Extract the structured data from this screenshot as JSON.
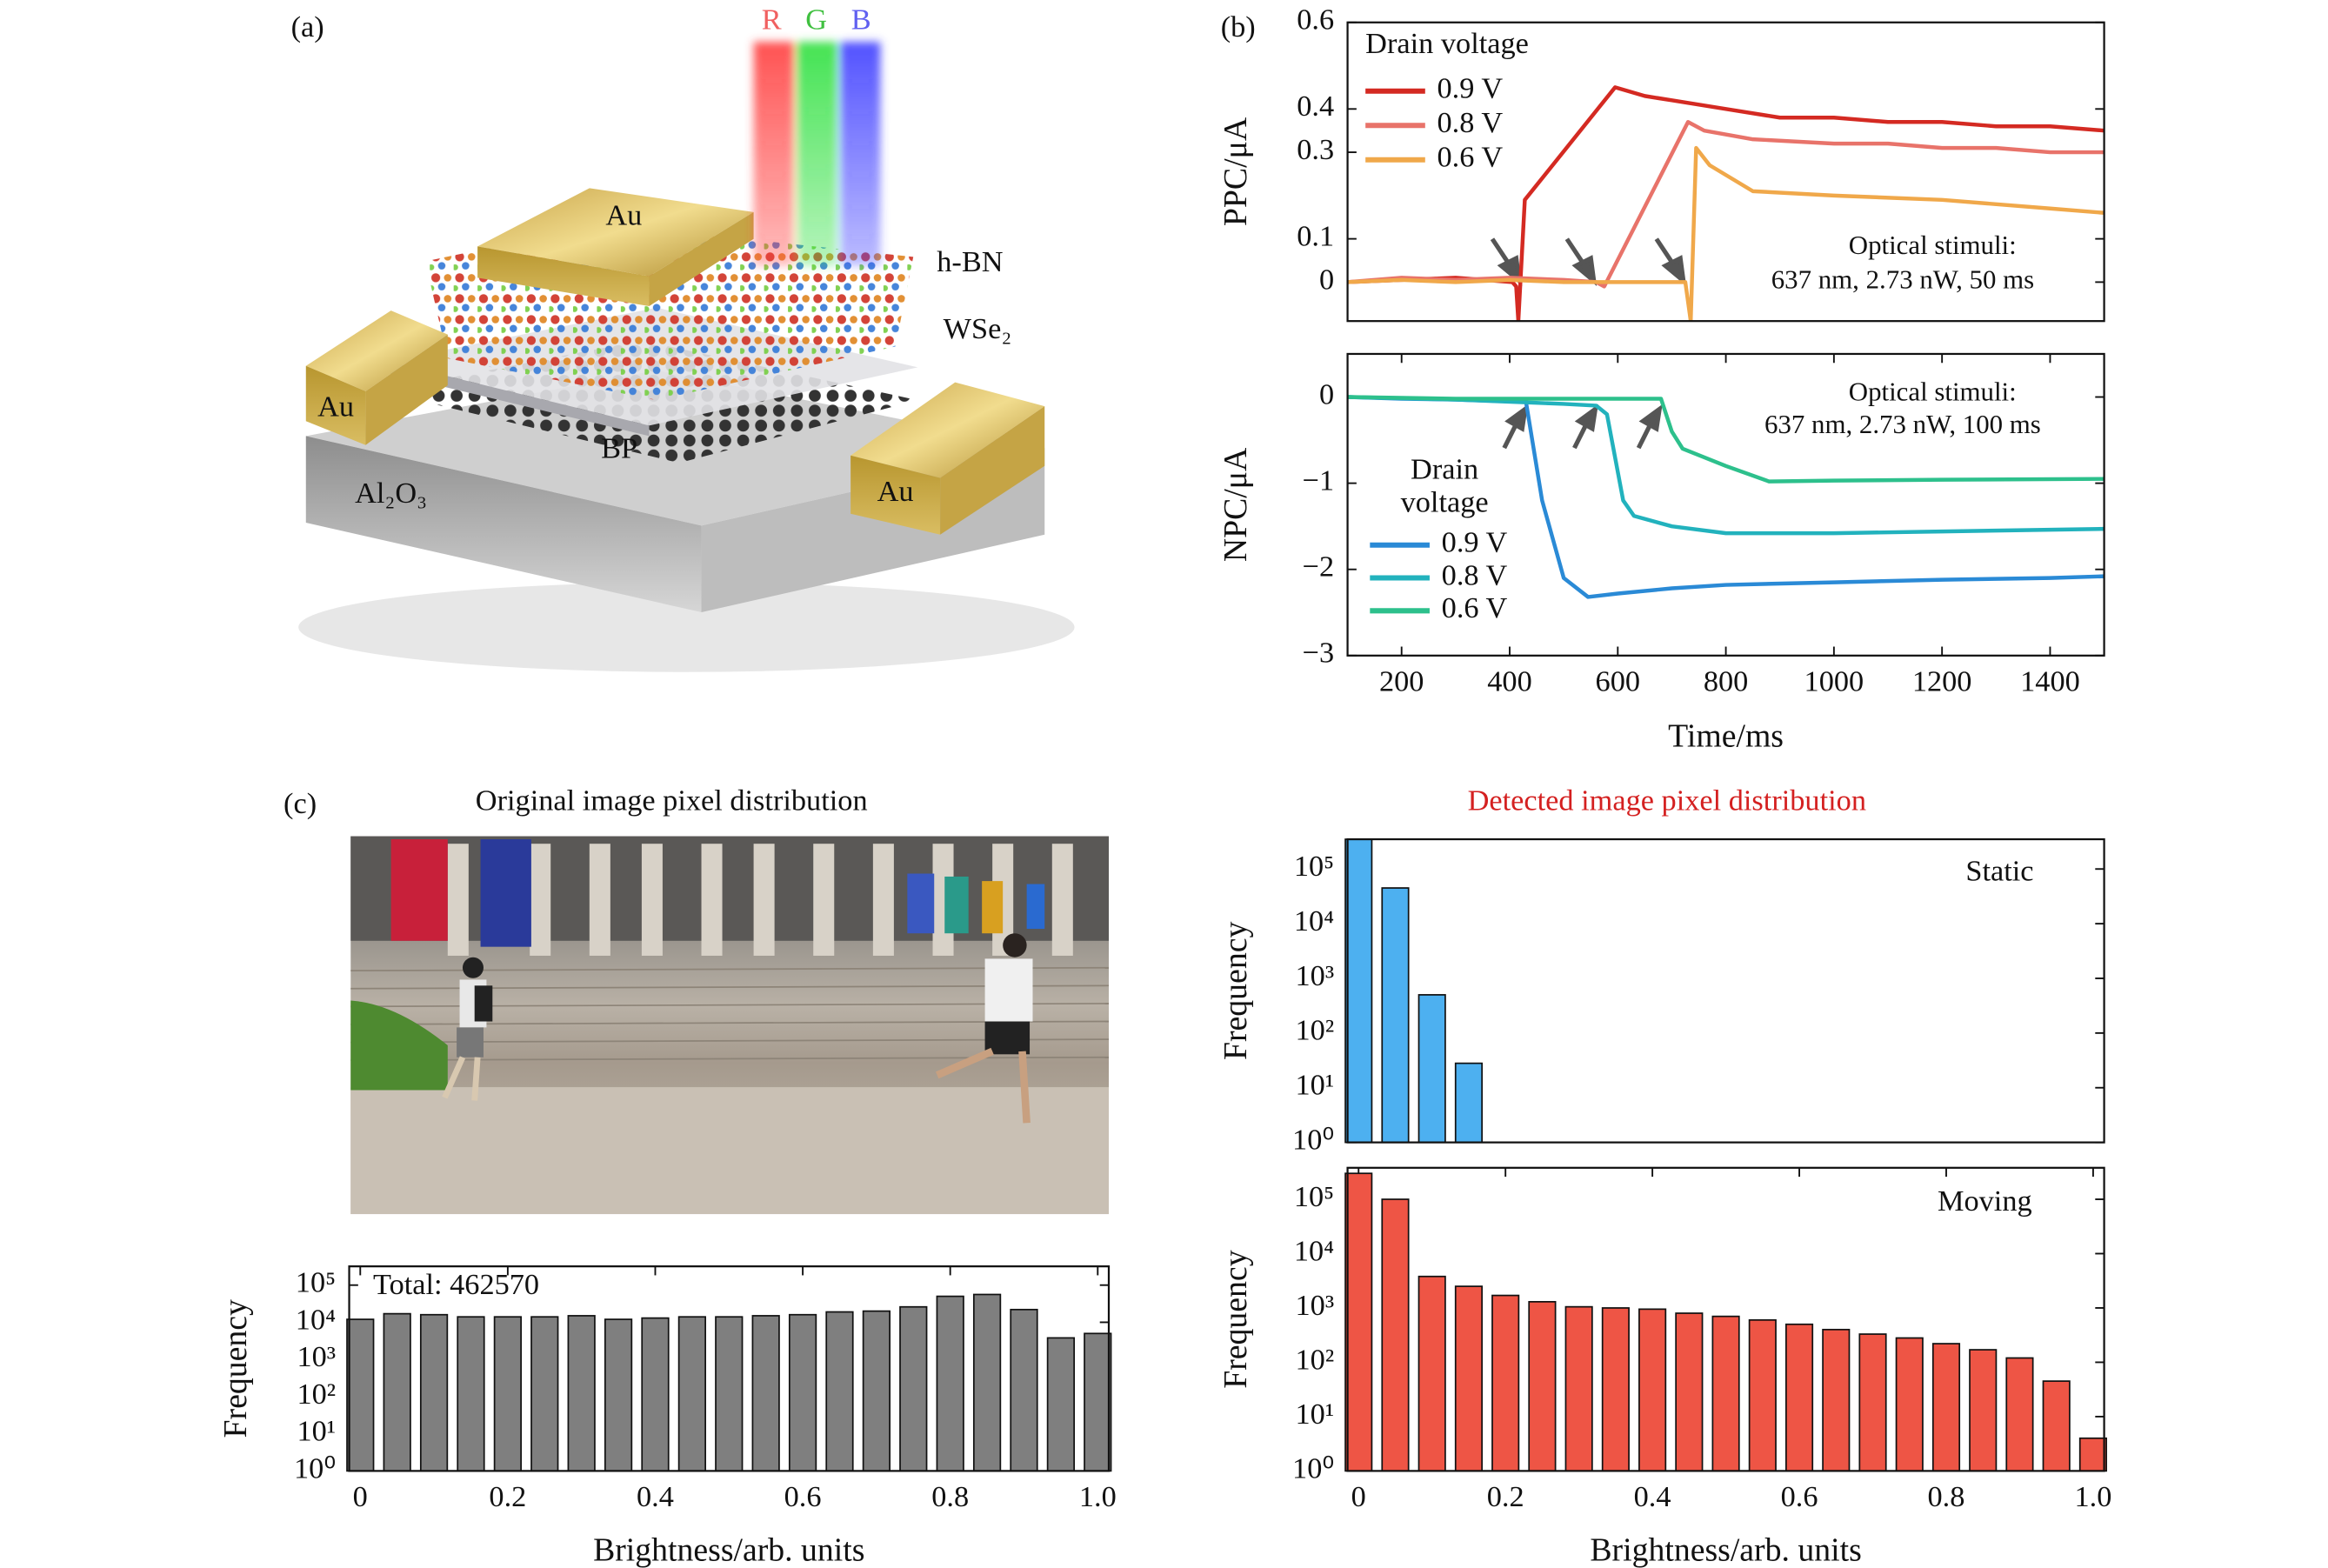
{
  "panel_labels": [
    "(a)",
    "(b)",
    "(c)"
  ],
  "panel_a": {
    "beams": [
      "R",
      "G",
      "B"
    ],
    "labels": [
      "Au",
      "h-BN",
      "WSe₂",
      "Au",
      "BP",
      "Al₂O₃",
      "Au"
    ]
  },
  "panel_c": {
    "left_title": "Original image pixel distribution",
    "right_title": "Detected image pixel distribution"
  },
  "chart_data": [
    {
      "type": "line",
      "ylabel": "PPC/μA",
      "xlim": [
        100,
        1500
      ],
      "ylim": [
        -0.09,
        0.6
      ],
      "yticks": [
        0,
        0.1,
        0.3,
        0.4,
        0.6
      ],
      "legend_title": "Drain voltage",
      "annotations": [
        "Optical stimuli:",
        "637 nm, 2.73 nW, 50 ms"
      ],
      "series": [
        {
          "name": "0.9 V",
          "color": "#d42a22",
          "x": [
            100,
            200,
            300,
            405,
            412,
            416,
            428,
            595,
            650,
            700,
            800,
            900,
            1000,
            1100,
            1200,
            1300,
            1400,
            1500
          ],
          "values": [
            0,
            0.005,
            0.01,
            0,
            -0.01,
            -0.09,
            0.19,
            0.45,
            0.43,
            0.42,
            0.4,
            0.38,
            0.38,
            0.37,
            0.37,
            0.36,
            0.36,
            0.35
          ]
        },
        {
          "name": "0.8 V",
          "color": "#e8736a",
          "x": [
            100,
            200,
            300,
            400,
            500,
            560,
            575,
            730,
            760,
            850,
            1000,
            1100,
            1200,
            1300,
            1400,
            1500
          ],
          "values": [
            0,
            0.01,
            0.005,
            0.01,
            0.005,
            0,
            -0.01,
            0.37,
            0.35,
            0.33,
            0.32,
            0.32,
            0.31,
            0.31,
            0.3,
            0.3
          ]
        },
        {
          "name": "0.6 V",
          "color": "#f0a84a",
          "x": [
            100,
            200,
            300,
            400,
            500,
            600,
            700,
            725,
            735,
            745,
            770,
            850,
            1000,
            1200,
            1400,
            1500
          ],
          "values": [
            0,
            0.005,
            0,
            0.005,
            0,
            0,
            0,
            0,
            -0.09,
            0.31,
            0.27,
            0.21,
            0.2,
            0.19,
            0.17,
            0.16
          ]
        }
      ]
    },
    {
      "type": "line",
      "ylabel": "NPC/μA",
      "xlabel": "Time/ms",
      "xlim": [
        100,
        1500
      ],
      "ylim": [
        -3,
        0.5
      ],
      "xticks": [
        200,
        400,
        600,
        800,
        1000,
        1200,
        1400
      ],
      "yticks": [
        0,
        {
          "value": -1,
          "label": "−1"
        },
        {
          "value": -2,
          "label": "−2"
        },
        {
          "value": -3,
          "label": "−3"
        }
      ],
      "legend_title_lines": [
        "Drain",
        "voltage"
      ],
      "annotations": [
        "Optical stimuli:",
        "637 nm, 2.73 nW, 100 ms"
      ],
      "series": [
        {
          "name": "0.9 V",
          "color": "#2a8ad6",
          "x": [
            100,
            200,
            300,
            400,
            430,
            460,
            500,
            545,
            600,
            700,
            800,
            1000,
            1200,
            1400,
            1500
          ],
          "values": [
            0,
            -0.02,
            -0.03,
            -0.05,
            -0.05,
            -1.2,
            -2.1,
            -2.32,
            -2.28,
            -2.22,
            -2.18,
            -2.15,
            -2.12,
            -2.1,
            -2.08
          ]
        },
        {
          "name": "0.8 V",
          "color": "#22b2bd",
          "x": [
            100,
            300,
            500,
            560,
            580,
            610,
            630,
            700,
            800,
            1000,
            1200,
            1500
          ],
          "values": [
            0,
            -0.03,
            -0.08,
            -0.1,
            -0.2,
            -1.2,
            -1.38,
            -1.5,
            -1.58,
            -1.58,
            -1.56,
            -1.53
          ]
        },
        {
          "name": "0.6 V",
          "color": "#2dc08c",
          "x": [
            100,
            300,
            500,
            680,
            700,
            720,
            800,
            880,
            1000,
            1200,
            1500
          ],
          "values": [
            0,
            -0.02,
            -0.02,
            -0.02,
            -0.4,
            -0.6,
            -0.8,
            -0.98,
            -0.97,
            -0.96,
            -0.95
          ]
        }
      ]
    },
    {
      "type": "bar",
      "log_y": true,
      "color": "#7f7f7f",
      "ylabel": "Frequency",
      "xlabel": "Brightness/arb. units",
      "annotation": "Total: 462570",
      "xlim": [
        -0.015,
        1.015
      ],
      "ylim": [
        1,
        320000
      ],
      "xticks": [
        0,
        0.2,
        0.4,
        0.6,
        0.8,
        {
          "value": 1,
          "label": "1.0"
        }
      ],
      "yticks": [
        {
          "value": 1,
          "label": "10⁰"
        },
        {
          "value": 10,
          "label": "10¹"
        },
        {
          "value": 100,
          "label": "10²"
        },
        {
          "value": 1000,
          "label": "10³"
        },
        {
          "value": 10000,
          "label": "10⁴"
        },
        {
          "value": 100000,
          "label": "10⁵"
        }
      ],
      "x": [
        0,
        0.05,
        0.1,
        0.15,
        0.2,
        0.25,
        0.3,
        0.35,
        0.4,
        0.45,
        0.5,
        0.55,
        0.6,
        0.65,
        0.7,
        0.75,
        0.8,
        0.85,
        0.9,
        0.95,
        1
      ],
      "values": [
        12000,
        17000,
        16000,
        14000,
        14000,
        14000,
        15000,
        12000,
        13000,
        14000,
        14000,
        15000,
        16000,
        19000,
        20000,
        26000,
        50000,
        56000,
        22000,
        3800,
        5000
      ]
    },
    {
      "type": "bar",
      "log_y": true,
      "color": "#4db0f0",
      "ylabel": "Frequency",
      "title": "Static",
      "xlim": [
        -0.015,
        1.015
      ],
      "ylim": [
        1,
        350000
      ],
      "yticks": [
        {
          "value": 1,
          "label": "10⁰"
        },
        {
          "value": 10,
          "label": "10¹"
        },
        {
          "value": 100,
          "label": "10²"
        },
        {
          "value": 1000,
          "label": "10³"
        },
        {
          "value": 10000,
          "label": "10⁴"
        },
        {
          "value": 100000,
          "label": "10⁵"
        }
      ],
      "x": [
        0,
        0.05,
        0.1,
        0.15
      ],
      "values": [
        350000,
        45000,
        500,
        28
      ]
    },
    {
      "type": "bar",
      "log_y": true,
      "color": "#ee5545",
      "ylabel": "Frequency",
      "title": "Moving",
      "xlabel": "Brightness/arb. units",
      "xlim": [
        -0.015,
        1.015
      ],
      "ylim": [
        1,
        380000
      ],
      "xticks": [
        0,
        0.2,
        0.4,
        0.6,
        0.8,
        {
          "value": 1,
          "label": "1.0"
        }
      ],
      "yticks": [
        {
          "value": 1,
          "label": "10⁰"
        },
        {
          "value": 10,
          "label": "10¹"
        },
        {
          "value": 100,
          "label": "10²"
        },
        {
          "value": 1000,
          "label": "10³"
        },
        {
          "value": 10000,
          "label": "10⁴"
        },
        {
          "value": 100000,
          "label": "10⁵"
        }
      ],
      "x": [
        0,
        0.05,
        0.1,
        0.15,
        0.2,
        0.25,
        0.3,
        0.35,
        0.4,
        0.45,
        0.5,
        0.55,
        0.6,
        0.65,
        0.7,
        0.75,
        0.8,
        0.85,
        0.9,
        0.95,
        1
      ],
      "values": [
        300000,
        100000,
        3800,
        2500,
        1700,
        1300,
        1050,
        1000,
        950,
        800,
        700,
        600,
        500,
        400,
        330,
        280,
        220,
        170,
        120,
        45,
        4
      ]
    }
  ]
}
